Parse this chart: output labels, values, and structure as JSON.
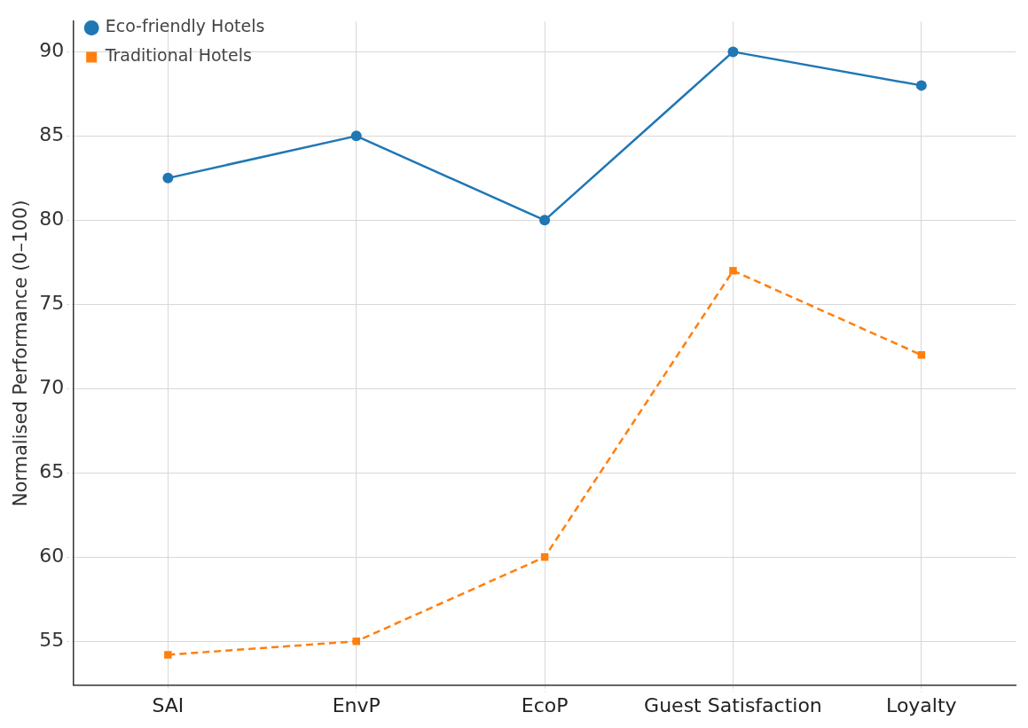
{
  "chart_data": {
    "type": "line",
    "ylabel": "Normalised Performance (0–100)",
    "categories": [
      "SAI",
      "EnvP",
      "EcoP",
      "Guest Satisfaction",
      "Loyalty"
    ],
    "series": [
      {
        "name": "Eco-friendly Hotels",
        "color": "#1f77b4",
        "values": [
          82.5,
          85,
          80,
          90,
          88
        ],
        "marker": "circle",
        "line_style": "solid"
      },
      {
        "name": "Traditional Hotels",
        "color": "#ff7f0e",
        "values": [
          54.2,
          55,
          60,
          77,
          72
        ],
        "marker": "square",
        "line_style": "dashed"
      }
    ],
    "ylim": [
      52.4,
      91.8
    ],
    "yticks": [
      55,
      60,
      65,
      70,
      75,
      80,
      85,
      90
    ],
    "grid": true,
    "legend": "top left"
  }
}
